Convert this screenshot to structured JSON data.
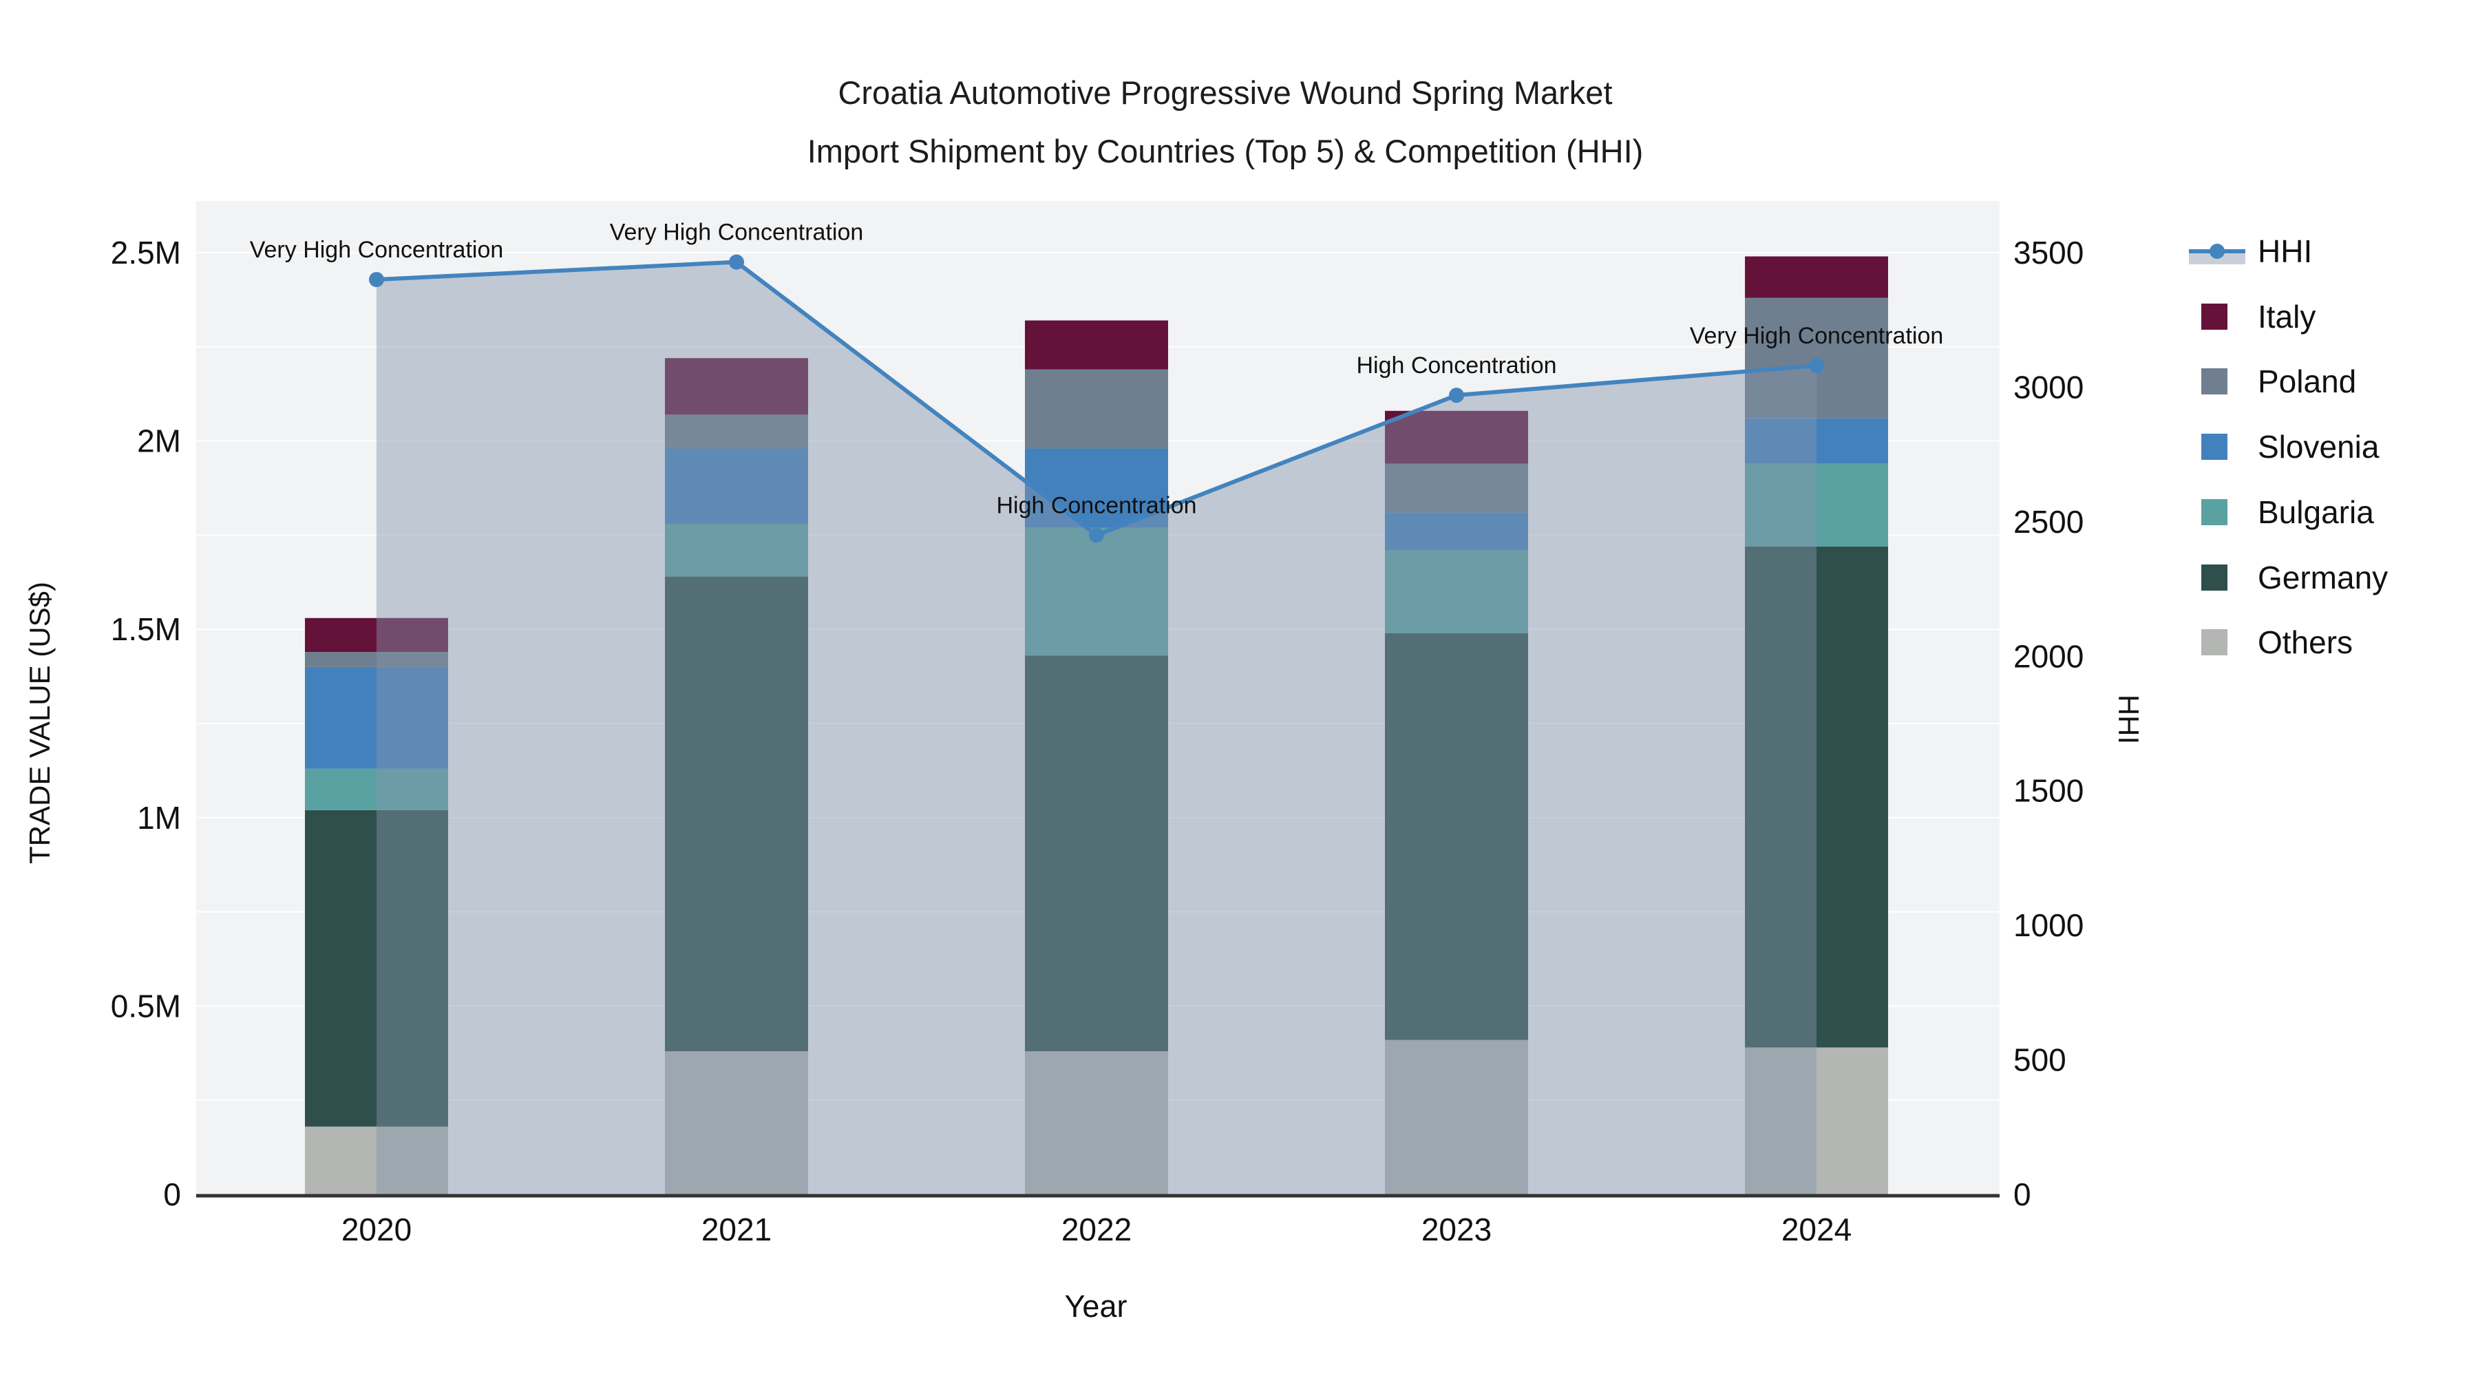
{
  "title": {
    "line1": "Croatia Automotive Progressive Wound Spring Market",
    "line2": "Import Shipment by Countries (Top 5) & Competition (HHI)"
  },
  "axes": {
    "y_left": {
      "title": "TRADE VALUE (US$)",
      "tick_labels": [
        "0",
        "0.5M",
        "1M",
        "1.5M",
        "2M",
        "2.5M"
      ],
      "tick_values": [
        0,
        500000,
        1000000,
        1500000,
        2000000,
        2500000
      ],
      "max": 2500000,
      "grid_step": 250000
    },
    "y_right": {
      "title": "HHI",
      "tick_labels": [
        "0",
        "500",
        "1000",
        "1500",
        "2000",
        "2500",
        "3000",
        "3500"
      ],
      "tick_values": [
        0,
        500,
        1000,
        1500,
        2000,
        2500,
        3000,
        3500
      ],
      "max": 3500
    },
    "x": {
      "title": "Year",
      "categories": [
        "2020",
        "2021",
        "2022",
        "2023",
        "2024"
      ]
    }
  },
  "colors": {
    "italy": "#64123a",
    "poland": "#6f7f8f",
    "slovenia": "#4381bd",
    "bulgaria": "#5aa2a2",
    "germany": "#2e4f4b",
    "others": "#b3b6b3",
    "hhi_line": "#4384bf",
    "hhi_fill": "rgba(130,148,170,0.45)",
    "plot_bg": "#f2f3f4",
    "grid": "#ffffff",
    "axis_line": "#333333",
    "text": "#111111"
  },
  "legend": [
    {
      "label": "HHI",
      "type": "line",
      "color_key": "hhi_line"
    },
    {
      "label": "Italy",
      "type": "swatch",
      "color_key": "italy"
    },
    {
      "label": "Poland",
      "type": "swatch",
      "color_key": "poland"
    },
    {
      "label": "Slovenia",
      "type": "swatch",
      "color_key": "slovenia"
    },
    {
      "label": "Bulgaria",
      "type": "swatch",
      "color_key": "bulgaria"
    },
    {
      "label": "Germany",
      "type": "swatch",
      "color_key": "germany"
    },
    {
      "label": "Others",
      "type": "swatch",
      "color_key": "others"
    }
  ],
  "chart_data": {
    "type": "bar+line",
    "bar_mode": "stacked",
    "categories": [
      "2020",
      "2021",
      "2022",
      "2023",
      "2024"
    ],
    "value_axis": "TRADE VALUE (US$)",
    "series": [
      {
        "name": "Others",
        "color_key": "others",
        "values": [
          180000,
          380000,
          380000,
          410000,
          390000
        ]
      },
      {
        "name": "Germany",
        "color_key": "germany",
        "values": [
          840000,
          1260000,
          1050000,
          1080000,
          1330000
        ]
      },
      {
        "name": "Bulgaria",
        "color_key": "bulgaria",
        "values": [
          110000,
          140000,
          340000,
          220000,
          220000
        ]
      },
      {
        "name": "Slovenia",
        "color_key": "slovenia",
        "values": [
          270000,
          200000,
          210000,
          100000,
          120000
        ]
      },
      {
        "name": "Poland",
        "color_key": "poland",
        "values": [
          40000,
          90000,
          210000,
          130000,
          320000
        ]
      },
      {
        "name": "Italy",
        "color_key": "italy",
        "values": [
          90000,
          150000,
          130000,
          140000,
          110000
        ]
      }
    ],
    "totals": [
      1530000,
      2220000,
      2320000,
      2080000,
      2490000
    ],
    "line": {
      "name": "HHI",
      "axis": "right",
      "fill": "tozeroy",
      "values": [
        3400,
        3465,
        2450,
        2970,
        3080
      ],
      "annotations": [
        "Very High Concentration",
        "Very High Concentration",
        "High Concentration",
        "High Concentration",
        "Very High Concentration"
      ]
    },
    "ylim_left": [
      0,
      2500000
    ],
    "ylim_right": [
      0,
      3500
    ],
    "grid": true,
    "legend_position": "right"
  }
}
